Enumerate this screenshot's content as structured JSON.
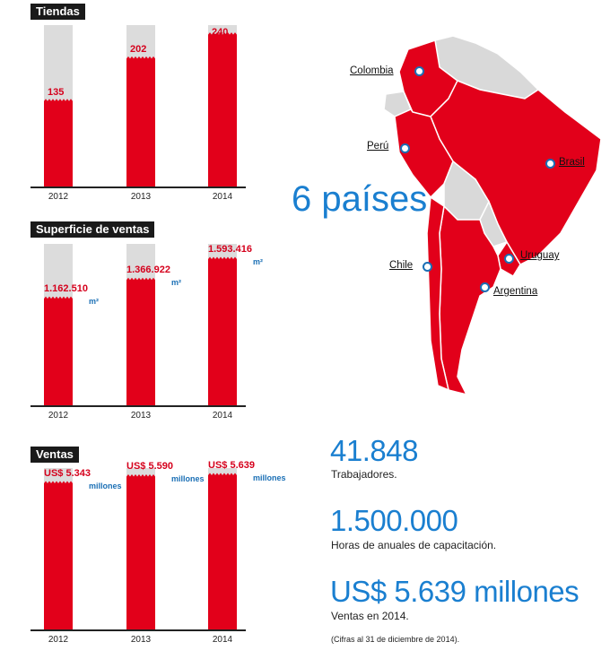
{
  "colors": {
    "bar": "#e2001a",
    "bar_bg": "#dcdcdc",
    "blue": "#1a7fd0",
    "unit_blue": "#1a6fb5",
    "title_bg": "#1a1a1a"
  },
  "chart_data": [
    {
      "type": "bar",
      "title": "Tiendas",
      "categories": [
        "2012",
        "2013",
        "2014"
      ],
      "values": [
        135,
        202,
        240
      ],
      "labels": [
        "135",
        "202",
        "240"
      ],
      "unit": ""
    },
    {
      "type": "bar",
      "title": "Superficie de ventas",
      "categories": [
        "2012",
        "2013",
        "2014"
      ],
      "values": [
        1162510,
        1366922,
        1593416
      ],
      "labels": [
        "1.162.510",
        "1.366.922",
        "1.593.416"
      ],
      "unit": "m²"
    },
    {
      "type": "bar",
      "title": "Ventas",
      "categories": [
        "2012",
        "2013",
        "2014"
      ],
      "values": [
        5343,
        5590,
        5639
      ],
      "labels": [
        "US$ 5.343",
        "US$ 5.590",
        "US$ 5.639"
      ],
      "unit": "millones"
    }
  ],
  "map": {
    "headline": "6 países",
    "countries": [
      "Colombia",
      "Perú",
      "Brasil",
      "Chile",
      "Uruguay",
      "Argentina"
    ]
  },
  "stats": [
    {
      "value": "41.848",
      "label": "Trabajadores."
    },
    {
      "value": "1.500.000",
      "label": "Horas de anuales de capacitación."
    },
    {
      "value": "US$ 5.639 millones",
      "label": "Ventas en 2014."
    }
  ],
  "note": "(Cifras al 31 de diciembre de 2014)."
}
